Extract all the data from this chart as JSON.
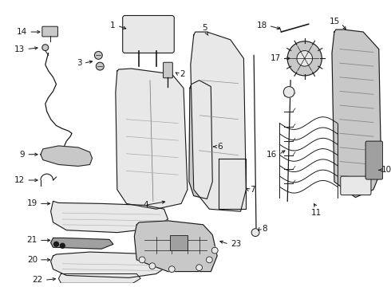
{
  "bg": "#ffffff",
  "line_color": "#1a1a1a",
  "gray_fill": "#c8c8c8",
  "light_fill": "#e8e8e8",
  "dark_fill": "#a0a0a0",
  "lw": 0.8
}
